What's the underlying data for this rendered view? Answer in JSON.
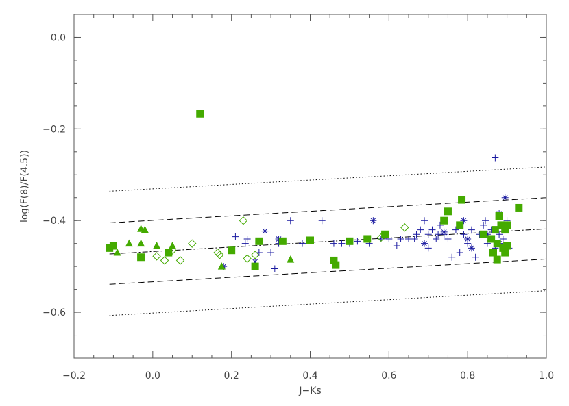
{
  "chart_data": {
    "type": "scatter",
    "title": "",
    "xlabel": "J−Ks",
    "ylabel": "log(F(8)/F(4.5))",
    "xlim": [
      -0.2,
      1.0
    ],
    "ylim": [
      -0.7,
      0.05
    ],
    "xticks": [
      -0.2,
      0.0,
      0.2,
      0.4,
      0.6,
      0.8,
      1.0
    ],
    "xtick_labels": [
      "−0.2",
      "0.0",
      "0.2",
      "0.4",
      "0.6",
      "0.8",
      "1.0"
    ],
    "yticks": [
      -0.6,
      -0.4,
      -0.2,
      0.0
    ],
    "ytick_labels": [
      "−0.6",
      "−0.4",
      "−0.2",
      "0.0"
    ],
    "grid": false,
    "legend": "none",
    "colors": {
      "green": "#44aa00",
      "blue": "#1a1aa0",
      "line": "#000000",
      "axis": "#555555"
    },
    "series": [
      {
        "marker": "square-filled",
        "color": "#44aa00",
        "points": [
          [
            -0.11,
            -0.46
          ],
          [
            -0.1,
            -0.455
          ],
          [
            -0.03,
            -0.48
          ],
          [
            0.04,
            -0.47
          ],
          [
            0.12,
            -0.167
          ],
          [
            0.2,
            -0.465
          ],
          [
            0.26,
            -0.5
          ],
          [
            0.27,
            -0.445
          ],
          [
            0.33,
            -0.445
          ],
          [
            0.4,
            -0.443
          ],
          [
            0.46,
            -0.487
          ],
          [
            0.465,
            -0.497
          ],
          [
            0.5,
            -0.445
          ],
          [
            0.545,
            -0.44
          ],
          [
            0.59,
            -0.43
          ],
          [
            0.74,
            -0.4
          ],
          [
            0.75,
            -0.38
          ],
          [
            0.78,
            -0.41
          ],
          [
            0.785,
            -0.355
          ],
          [
            0.84,
            -0.43
          ],
          [
            0.86,
            -0.44
          ],
          [
            0.865,
            -0.47
          ],
          [
            0.87,
            -0.42
          ],
          [
            0.875,
            -0.45
          ],
          [
            0.875,
            -0.485
          ],
          [
            0.88,
            -0.39
          ],
          [
            0.885,
            -0.41
          ],
          [
            0.89,
            -0.46
          ],
          [
            0.895,
            -0.42
          ],
          [
            0.895,
            -0.47
          ],
          [
            0.9,
            -0.41
          ],
          [
            0.9,
            -0.455
          ],
          [
            0.93,
            -0.372
          ]
        ]
      },
      {
        "marker": "triangle-filled",
        "color": "#44aa00",
        "points": [
          [
            -0.09,
            -0.47
          ],
          [
            -0.06,
            -0.45
          ],
          [
            -0.03,
            -0.45
          ],
          [
            -0.03,
            -0.418
          ],
          [
            -0.02,
            -0.42
          ],
          [
            0.01,
            -0.455
          ],
          [
            0.05,
            -0.455
          ],
          [
            0.35,
            -0.485
          ],
          [
            0.175,
            -0.5
          ]
        ]
      },
      {
        "marker": "diamond-open",
        "color": "#44aa00",
        "points": [
          [
            0.01,
            -0.478
          ],
          [
            0.03,
            -0.487
          ],
          [
            0.05,
            -0.465
          ],
          [
            0.07,
            -0.487
          ],
          [
            0.1,
            -0.45
          ],
          [
            0.165,
            -0.47
          ],
          [
            0.17,
            -0.475
          ],
          [
            0.23,
            -0.4
          ],
          [
            0.24,
            -0.483
          ],
          [
            0.26,
            -0.475
          ],
          [
            0.58,
            -0.437
          ],
          [
            0.64,
            -0.415
          ]
        ]
      },
      {
        "marker": "asterisk",
        "color": "#1a1aa0",
        "points": [
          [
            0.18,
            -0.5
          ],
          [
            0.26,
            -0.49
          ],
          [
            0.285,
            -0.423
          ],
          [
            0.32,
            -0.44
          ],
          [
            0.56,
            -0.4
          ],
          [
            0.69,
            -0.45
          ],
          [
            0.74,
            -0.425
          ],
          [
            0.79,
            -0.4
          ],
          [
            0.8,
            -0.44
          ],
          [
            0.81,
            -0.46
          ],
          [
            0.85,
            -0.43
          ],
          [
            0.86,
            -0.44
          ],
          [
            0.88,
            -0.385
          ],
          [
            0.88,
            -0.45
          ],
          [
            0.89,
            -0.41
          ],
          [
            0.895,
            -0.35
          ]
        ]
      },
      {
        "marker": "plus",
        "color": "#1a1aa0",
        "points": [
          [
            0.21,
            -0.435
          ],
          [
            0.235,
            -0.45
          ],
          [
            0.24,
            -0.44
          ],
          [
            0.27,
            -0.47
          ],
          [
            0.3,
            -0.47
          ],
          [
            0.31,
            -0.505
          ],
          [
            0.32,
            -0.45
          ],
          [
            0.35,
            -0.4
          ],
          [
            0.38,
            -0.45
          ],
          [
            0.43,
            -0.4
          ],
          [
            0.46,
            -0.45
          ],
          [
            0.48,
            -0.45
          ],
          [
            0.5,
            -0.45
          ],
          [
            0.52,
            -0.445
          ],
          [
            0.55,
            -0.45
          ],
          [
            0.58,
            -0.44
          ],
          [
            0.6,
            -0.44
          ],
          [
            0.62,
            -0.455
          ],
          [
            0.63,
            -0.44
          ],
          [
            0.65,
            -0.44
          ],
          [
            0.67,
            -0.43
          ],
          [
            0.68,
            -0.42
          ],
          [
            0.69,
            -0.4
          ],
          [
            0.7,
            -0.43
          ],
          [
            0.7,
            -0.46
          ],
          [
            0.71,
            -0.42
          ],
          [
            0.72,
            -0.44
          ],
          [
            0.73,
            -0.41
          ],
          [
            0.74,
            -0.43
          ],
          [
            0.75,
            -0.44
          ],
          [
            0.76,
            -0.48
          ],
          [
            0.77,
            -0.42
          ],
          [
            0.78,
            -0.47
          ],
          [
            0.79,
            -0.43
          ],
          [
            0.8,
            -0.45
          ],
          [
            0.81,
            -0.42
          ],
          [
            0.82,
            -0.48
          ],
          [
            0.83,
            -0.43
          ],
          [
            0.84,
            -0.41
          ],
          [
            0.845,
            -0.4
          ],
          [
            0.85,
            -0.45
          ],
          [
            0.86,
            -0.42
          ],
          [
            0.87,
            -0.46
          ],
          [
            0.87,
            -0.263
          ],
          [
            0.88,
            -0.43
          ],
          [
            0.89,
            -0.44
          ],
          [
            0.9,
            -0.4
          ],
          [
            0.905,
            -0.46
          ],
          [
            0.665,
            -0.44
          ],
          [
            0.725,
            -0.43
          ]
        ]
      }
    ],
    "lines": [
      {
        "style": "dash-dot",
        "x": [
          -0.11,
          1.0
        ],
        "y": [
          -0.473,
          -0.418
        ]
      },
      {
        "style": "dashed",
        "x": [
          -0.11,
          1.0
        ],
        "y": [
          -0.405,
          -0.35
        ]
      },
      {
        "style": "dashed",
        "x": [
          -0.11,
          1.0
        ],
        "y": [
          -0.539,
          -0.484
        ]
      },
      {
        "style": "dotted",
        "x": [
          -0.11,
          1.0
        ],
        "y": [
          -0.336,
          -0.283
        ]
      },
      {
        "style": "dotted",
        "x": [
          -0.11,
          1.0
        ],
        "y": [
          -0.607,
          -0.553
        ]
      }
    ]
  }
}
